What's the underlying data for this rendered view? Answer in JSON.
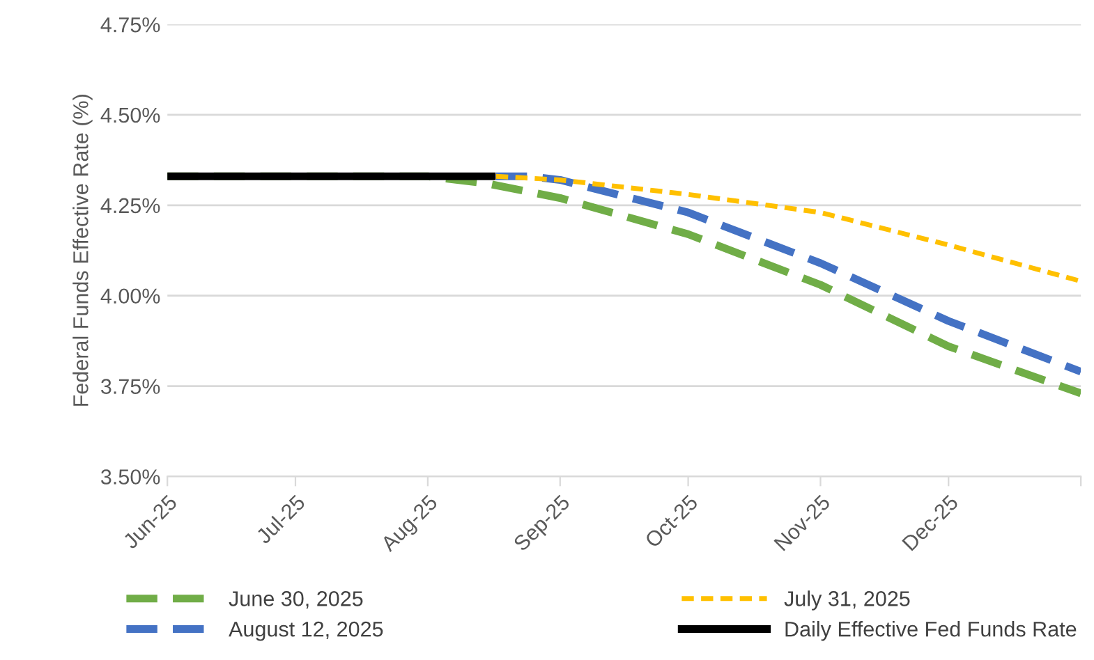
{
  "chart_data": {
    "type": "line",
    "ylabel": "Federal Funds Effective Rate (%)",
    "series": [
      {
        "name": "June 30, 2025",
        "color": "#70ad47",
        "line_style": "dashed",
        "x": [
          "2025-06-01",
          "2025-07-01",
          "2025-08-01",
          "2025-08-15",
          "2025-09-01",
          "2025-10-01",
          "2025-11-01",
          "2025-12-01",
          "2026-01-01"
        ],
        "values": [
          4.33,
          4.33,
          4.33,
          4.31,
          4.27,
          4.17,
          4.03,
          3.86,
          3.73
        ]
      },
      {
        "name": "July 31, 2025",
        "color": "#ffc000",
        "line_style": "dotted",
        "x": [
          "2025-08-17",
          "2025-09-01",
          "2025-10-01",
          "2025-11-01",
          "2025-12-01",
          "2026-01-01"
        ],
        "values": [
          4.33,
          4.32,
          4.28,
          4.23,
          4.14,
          4.04
        ]
      },
      {
        "name": "August 12, 2025",
        "color": "#4472c4",
        "line_style": "dashed",
        "x": [
          "2025-08-17",
          "2025-08-25",
          "2025-09-01",
          "2025-10-01",
          "2025-11-01",
          "2025-12-01",
          "2026-01-01"
        ],
        "values": [
          4.33,
          4.33,
          4.32,
          4.23,
          4.09,
          3.93,
          3.79
        ]
      },
      {
        "name": "Daily Effective Fed Funds Rate",
        "color": "#000000",
        "line_style": "solid",
        "x": [
          "2025-06-01",
          "2025-08-16"
        ],
        "values": [
          4.33,
          4.33
        ]
      }
    ],
    "xlim": [
      "2025-06-01",
      "2026-01-01"
    ],
    "xticks": [
      {
        "value": "2025-06-01",
        "label": "Jun-25"
      },
      {
        "value": "2025-07-01",
        "label": "Jul-25"
      },
      {
        "value": "2025-08-01",
        "label": "Aug-25"
      },
      {
        "value": "2025-09-01",
        "label": "Sep-25"
      },
      {
        "value": "2025-10-01",
        "label": "Oct-25"
      },
      {
        "value": "2025-11-01",
        "label": "Nov-25"
      },
      {
        "value": "2025-12-01",
        "label": "Dec-25"
      },
      {
        "value": "2026-01-01",
        "label": null
      }
    ],
    "ylim": [
      3.5,
      4.75
    ],
    "yticks": [
      {
        "value": 3.5,
        "label": "3.50%"
      },
      {
        "value": 3.75,
        "label": "3.75%"
      },
      {
        "value": 4.0,
        "label": "4.00%"
      },
      {
        "value": 4.25,
        "label": "4.25%"
      },
      {
        "value": 4.5,
        "label": "4.50%"
      },
      {
        "value": 4.75,
        "label": "4.75%"
      }
    ],
    "grid": "y",
    "legend": "bottom",
    "marker": "none"
  }
}
